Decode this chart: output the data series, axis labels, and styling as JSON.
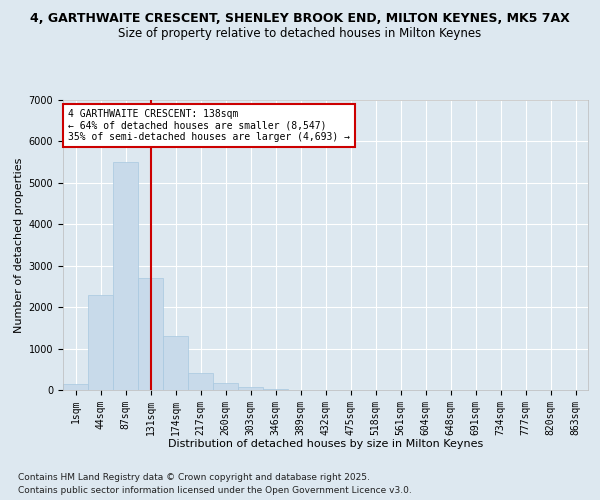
{
  "title_line1": "4, GARTHWAITE CRESCENT, SHENLEY BROOK END, MILTON KEYNES, MK5 7AX",
  "title_line2": "Size of property relative to detached houses in Milton Keynes",
  "xlabel": "Distribution of detached houses by size in Milton Keynes",
  "ylabel": "Number of detached properties",
  "bar_color": "#c8daea",
  "bar_edge_color": "#a8c8e0",
  "vline_color": "#cc0000",
  "vline_x_bin": 3,
  "annotation_text": "4 GARTHWAITE CRESCENT: 138sqm\n← 64% of detached houses are smaller (8,547)\n35% of semi-detached houses are larger (4,693) →",
  "annotation_box_facecolor": "#ffffff",
  "annotation_border_color": "#cc0000",
  "categories": [
    "1sqm",
    "44sqm",
    "87sqm",
    "131sqm",
    "174sqm",
    "217sqm",
    "260sqm",
    "303sqm",
    "346sqm",
    "389sqm",
    "432sqm",
    "475sqm",
    "518sqm",
    "561sqm",
    "604sqm",
    "648sqm",
    "691sqm",
    "734sqm",
    "777sqm",
    "820sqm",
    "863sqm"
  ],
  "values": [
    150,
    2300,
    5500,
    2700,
    1300,
    400,
    175,
    75,
    30,
    0,
    0,
    0,
    0,
    0,
    0,
    0,
    0,
    0,
    0,
    0,
    0
  ],
  "ylim": [
    0,
    7000
  ],
  "yticks": [
    0,
    1000,
    2000,
    3000,
    4000,
    5000,
    6000,
    7000
  ],
  "footnote1": "Contains HM Land Registry data © Crown copyright and database right 2025.",
  "footnote2": "Contains public sector information licensed under the Open Government Licence v3.0.",
  "background_color": "#dde8f0",
  "plot_bg_color": "#dde8f0",
  "grid_color": "#ffffff",
  "title_fontsize": 9,
  "subtitle_fontsize": 8.5,
  "axis_label_fontsize": 8,
  "tick_fontsize": 7,
  "footnote_fontsize": 6.5
}
